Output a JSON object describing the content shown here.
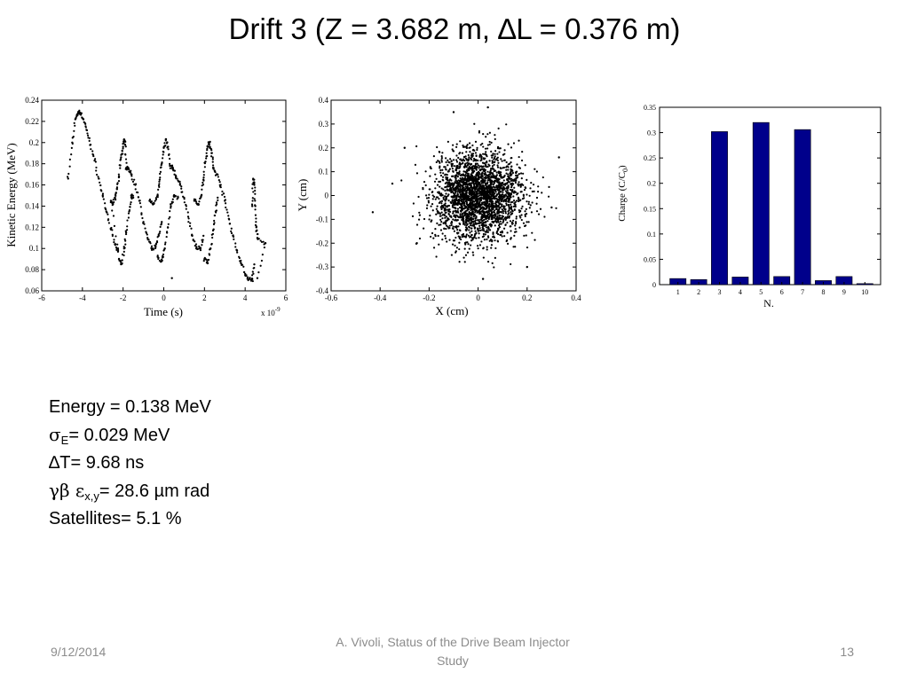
{
  "slide": {
    "title": "Drift 3 (Z = 3.682 m, ∆L = 0.376 m)"
  },
  "stats": {
    "energy": "Energy = 0.138 MeV",
    "sigma_symbol": "σ",
    "sigma_sub": "E",
    "sigma_value": "= 0.029 MeV",
    "dt": "∆T= 9.68 ns",
    "emit_symbol": "γβ ε",
    "emit_sub": "x,y",
    "emit_value": "= 28.6 µm rad",
    "satellites": "Satellites= 5.1 %"
  },
  "footer": {
    "date": "9/12/2014",
    "center_line1": "A. Vivoli, Status of the Drive Beam Injector",
    "center_line2": "Study",
    "page": "13"
  },
  "chart_data": [
    {
      "type": "scatter",
      "xlabel": "Time  (s)",
      "ylabel": "Kinetic Energy  (MeV)",
      "x_multiplier": "x 10",
      "x_multiplier_exp": "-9",
      "xlim": [
        -6,
        6
      ],
      "ylim": [
        0.06,
        0.24
      ],
      "xticks": [
        -6,
        -4,
        -2,
        0,
        2,
        4,
        6
      ],
      "yticks": [
        0.06,
        0.08,
        0.1,
        0.12,
        0.14,
        0.16,
        0.18,
        0.2,
        0.22,
        0.24
      ],
      "xtick_labels": [
        "-6",
        "-4",
        "-2",
        "0",
        "2",
        "4",
        "6"
      ],
      "ytick_labels": [
        "0.06",
        "0.08",
        "0.1",
        "0.12",
        "0.14",
        "0.16",
        "0.18",
        "0.2",
        "0.22",
        "0.24"
      ],
      "grid": false,
      "points": [
        [
          -4.7,
          0.166
        ],
        [
          -4.5,
          0.2
        ],
        [
          -4.35,
          0.222
        ],
        [
          -4.2,
          0.229
        ],
        [
          -4.1,
          0.228
        ],
        [
          -3.95,
          0.222
        ],
        [
          -3.8,
          0.212
        ],
        [
          -3.6,
          0.198
        ],
        [
          -3.4,
          0.183
        ],
        [
          -3.2,
          0.166
        ],
        [
          -3.0,
          0.15
        ],
        [
          -2.8,
          0.134
        ],
        [
          -2.6,
          0.118
        ],
        [
          -2.4,
          0.104
        ],
        [
          -2.25,
          0.097
        ],
        [
          -2.6,
          0.145
        ],
        [
          -2.5,
          0.142
        ],
        [
          -2.4,
          0.148
        ],
        [
          -2.3,
          0.156
        ],
        [
          -2.2,
          0.168
        ],
        [
          -2.1,
          0.186
        ],
        [
          -2.0,
          0.196
        ],
        [
          -1.95,
          0.203
        ],
        [
          -1.9,
          0.198
        ],
        [
          -1.85,
          0.176
        ],
        [
          -1.75,
          0.176
        ],
        [
          -1.6,
          0.17
        ],
        [
          -1.4,
          0.16
        ],
        [
          -1.2,
          0.145
        ],
        [
          -1.0,
          0.125
        ],
        [
          -0.8,
          0.11
        ],
        [
          -0.6,
          0.1
        ],
        [
          -0.4,
          0.102
        ],
        [
          -0.25,
          0.112
        ],
        [
          -0.1,
          0.125
        ],
        [
          -2.2,
          0.09
        ],
        [
          -2.05,
          0.086
        ],
        [
          -1.95,
          0.1
        ],
        [
          -1.85,
          0.115
        ],
        [
          -1.7,
          0.135
        ],
        [
          -1.6,
          0.15
        ],
        [
          -1.5,
          0.148
        ],
        [
          -0.7,
          0.145
        ],
        [
          -0.5,
          0.142
        ],
        [
          -0.3,
          0.15
        ],
        [
          -0.2,
          0.165
        ],
        [
          -0.1,
          0.18
        ],
        [
          0.0,
          0.195
        ],
        [
          0.1,
          0.203
        ],
        [
          0.2,
          0.196
        ],
        [
          0.3,
          0.178
        ],
        [
          0.45,
          0.176
        ],
        [
          0.6,
          0.168
        ],
        [
          0.8,
          0.16
        ],
        [
          1.0,
          0.148
        ],
        [
          1.2,
          0.13
        ],
        [
          1.4,
          0.112
        ],
        [
          1.6,
          0.1
        ],
        [
          1.8,
          0.1
        ],
        [
          1.95,
          0.112
        ],
        [
          -0.3,
          0.092
        ],
        [
          -0.1,
          0.088
        ],
        [
          0.05,
          0.1
        ],
        [
          0.2,
          0.12
        ],
        [
          0.35,
          0.14
        ],
        [
          0.5,
          0.15
        ],
        [
          0.7,
          0.148
        ],
        [
          0.4,
          0.072
        ],
        [
          1.5,
          0.145
        ],
        [
          1.7,
          0.142
        ],
        [
          1.85,
          0.15
        ],
        [
          1.95,
          0.165
        ],
        [
          2.05,
          0.182
        ],
        [
          2.15,
          0.196
        ],
        [
          2.25,
          0.2
        ],
        [
          2.35,
          0.19
        ],
        [
          2.45,
          0.176
        ],
        [
          2.6,
          0.17
        ],
        [
          2.8,
          0.16
        ],
        [
          3.0,
          0.145
        ],
        [
          3.2,
          0.128
        ],
        [
          3.4,
          0.112
        ],
        [
          3.6,
          0.098
        ],
        [
          3.8,
          0.086
        ],
        [
          4.0,
          0.076
        ],
        [
          4.2,
          0.071
        ],
        [
          4.35,
          0.071
        ],
        [
          4.45,
          0.085
        ],
        [
          2.0,
          0.09
        ],
        [
          2.15,
          0.086
        ],
        [
          2.3,
          0.1
        ],
        [
          2.45,
          0.118
        ],
        [
          2.55,
          0.135
        ],
        [
          2.65,
          0.148
        ],
        [
          4.35,
          0.14
        ],
        [
          4.4,
          0.165
        ],
        [
          4.45,
          0.16
        ],
        [
          4.5,
          0.14
        ],
        [
          4.55,
          0.12
        ],
        [
          4.6,
          0.11
        ],
        [
          5.0,
          0.105
        ],
        [
          4.6,
          0.072
        ]
      ]
    },
    {
      "type": "scatter",
      "xlabel": "X  (cm)",
      "ylabel": "Y  (cm)",
      "xlim": [
        -0.6,
        0.4
      ],
      "ylim": [
        -0.4,
        0.4
      ],
      "xticks": [
        -0.6,
        -0.4,
        -0.2,
        0,
        0.2,
        0.4
      ],
      "yticks": [
        -0.4,
        -0.3,
        -0.2,
        -0.1,
        0,
        0.1,
        0.2,
        0.3,
        0.4
      ],
      "xtick_labels": [
        "-0.6",
        "-0.4",
        "-0.2",
        "0",
        "0.2",
        "0.4"
      ],
      "ytick_labels": [
        "-0.4",
        "-0.3",
        "-0.2",
        "-0.1",
        "0",
        "0.1",
        "0.2",
        "0.3",
        "0.4"
      ],
      "grid": false,
      "distribution": {
        "center": [
          0.0,
          0.0
        ],
        "sigma_x": 0.09,
        "sigma_y": 0.09
      },
      "outliers": [
        [
          -0.43,
          -0.07
        ],
        [
          -0.35,
          0.05
        ],
        [
          -0.3,
          0.2
        ],
        [
          0.33,
          0.16
        ],
        [
          0.3,
          -0.05
        ],
        [
          0.2,
          -0.3
        ],
        [
          -0.1,
          0.35
        ],
        [
          0.02,
          -0.35
        ],
        [
          0.04,
          0.37
        ],
        [
          -0.25,
          -0.2
        ]
      ]
    },
    {
      "type": "bar",
      "xlabel": "N.",
      "ylabel": "Charge (C/C",
      "ylabel_sub": "0",
      "ylabel_end": ")",
      "categories": [
        "1",
        "2",
        "3",
        "4",
        "5",
        "6",
        "7",
        "8",
        "9",
        "10"
      ],
      "values": [
        0.012,
        0.01,
        0.302,
        0.015,
        0.32,
        0.016,
        0.306,
        0.008,
        0.016,
        0.002
      ],
      "ylim": [
        0,
        0.35
      ],
      "yticks": [
        0,
        0.05,
        0.1,
        0.15,
        0.2,
        0.25,
        0.3,
        0.35
      ],
      "ytick_labels": [
        "0",
        "0.05",
        "0.1",
        "0.15",
        "0.2",
        "0.25",
        "0.3",
        "0.35"
      ],
      "bar_color": "#00008b",
      "grid": false
    }
  ]
}
